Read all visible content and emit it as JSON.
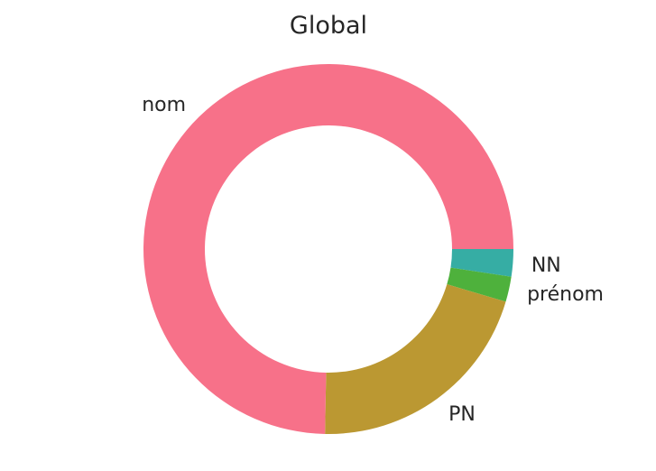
{
  "chart_data": {
    "type": "pie",
    "style": "donut",
    "title": "Global",
    "categories": [
      "NN",
      "prénom",
      "PN",
      "nom"
    ],
    "values": [
      2.4,
      2.2,
      20.7,
      74.7
    ],
    "unit": "%",
    "colors": [
      "#36ada4",
      "#4eb13c",
      "#bb9832",
      "#f77189"
    ],
    "start_angle_deg": 0,
    "direction": "clockwise",
    "legend": "none",
    "grid": false
  }
}
